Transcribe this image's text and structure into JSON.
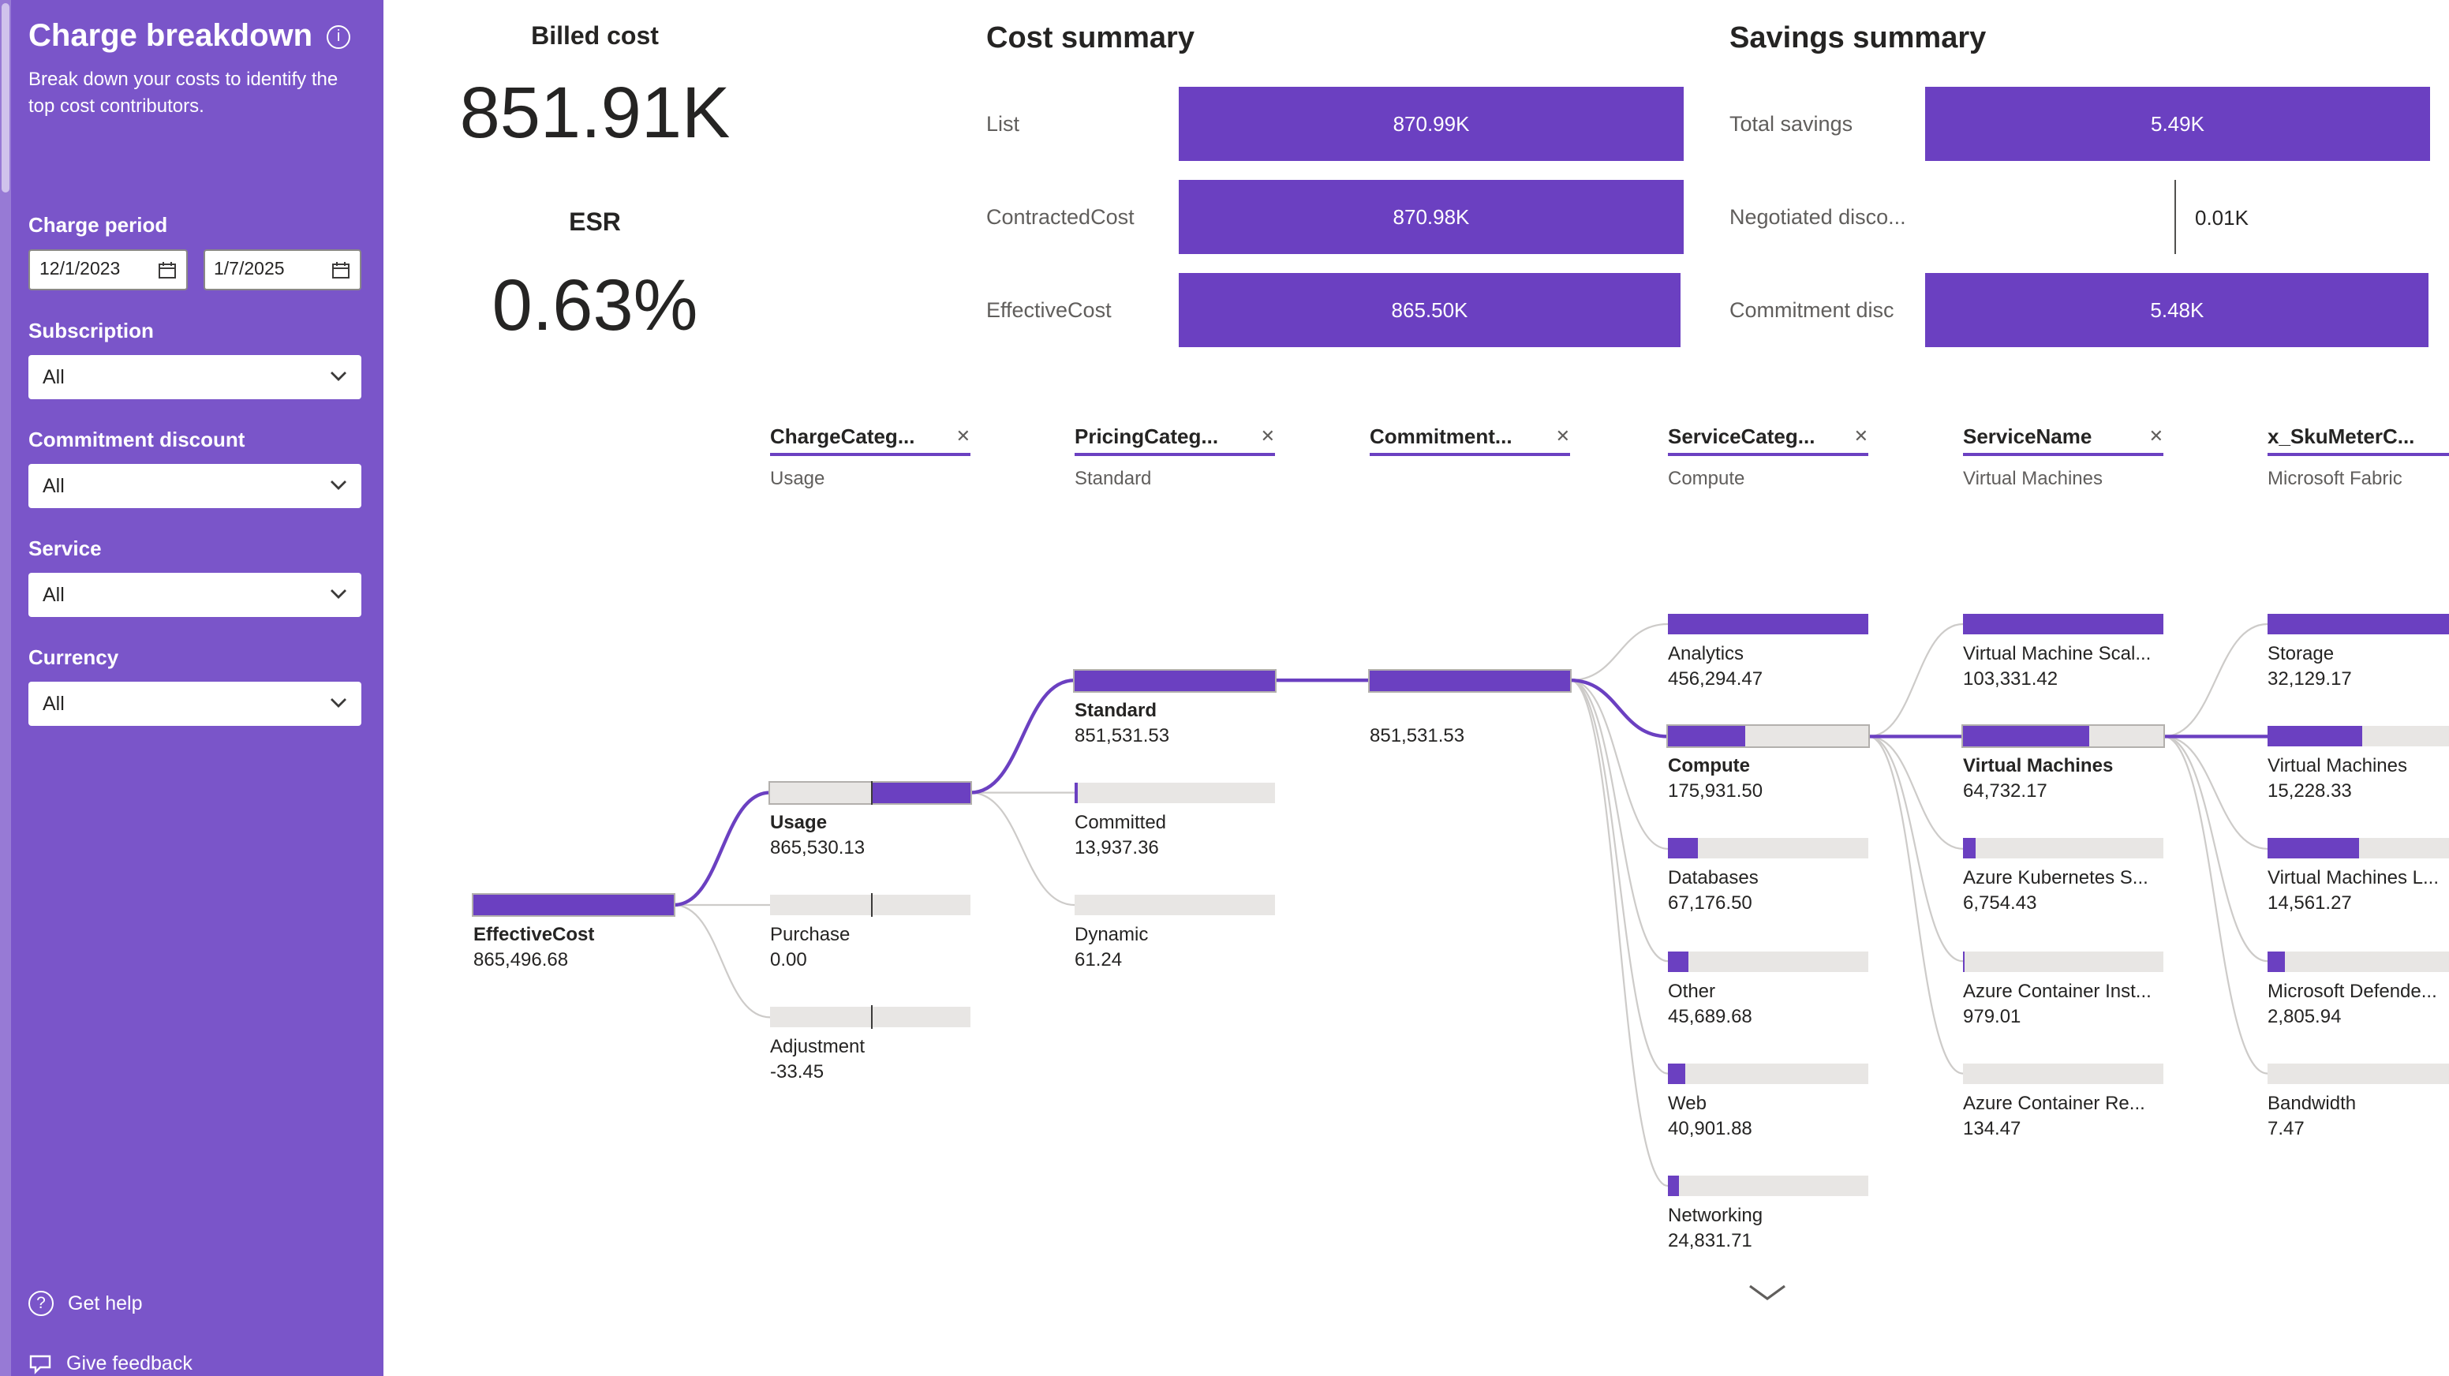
{
  "theme": {
    "purple": "#6B40C1",
    "sidebar_purple": "#7A55C9",
    "track_gray": "#E8E6E4",
    "text_dark": "#252423",
    "text_gray": "#605E5C"
  },
  "icons": {
    "info": "i",
    "close": "✕",
    "question": "?",
    "chevron_down": "⌄"
  },
  "sidebar": {
    "title": "Charge breakdown",
    "subtitle": "Break down your costs to identify the top cost contributors.",
    "charge_period_label": "Charge period",
    "date_start": "12/1/2023",
    "date_end": "1/7/2025",
    "filters": [
      {
        "label": "Subscription",
        "value": "All"
      },
      {
        "label": "Commitment discount",
        "value": "All"
      },
      {
        "label": "Service",
        "value": "All"
      },
      {
        "label": "Currency",
        "value": "All"
      }
    ],
    "get_help": "Get help",
    "give_feedback": "Give feedback"
  },
  "kpis": {
    "billed_label": "Billed cost",
    "billed_value": "851.91K",
    "esr_label": "ESR",
    "esr_value": "0.63%"
  },
  "cost_summary": {
    "title": "Cost summary",
    "rows": [
      {
        "label": "List",
        "display": "870.99K",
        "value": 870.99
      },
      {
        "label": "ContractedCost",
        "display": "870.98K",
        "value": 870.98
      },
      {
        "label": "EffectiveCost",
        "display": "865.50K",
        "value": 865.5
      }
    ]
  },
  "savings_summary": {
    "title": "Savings summary",
    "rows": [
      {
        "label": "Total savings",
        "display": "5.49K",
        "value": 5.49
      },
      {
        "label": "Negotiated disco...",
        "display": "0.01K",
        "value": 0.01,
        "outside": true
      },
      {
        "label": "Commitment disc",
        "display": "5.48K",
        "value": 5.48
      }
    ]
  },
  "tree": {
    "headers": [
      {
        "label": "ChargeCateg...",
        "selected_value": "Usage"
      },
      {
        "label": "PricingCateg...",
        "selected_value": "Standard"
      },
      {
        "label": "Commitment...",
        "selected_value": ""
      },
      {
        "label": "ServiceCateg...",
        "selected_value": "Compute"
      },
      {
        "label": "ServiceName",
        "selected_value": "Virtual Machines"
      },
      {
        "label": "x_SkuMeterC...",
        "selected_value": "Microsoft Fabric"
      }
    ],
    "columns": [
      {
        "field": "root",
        "nodes": [
          {
            "name": "EffectiveCost",
            "value": "865,496.68",
            "row": 2.5,
            "fill_from": 0,
            "fill_to": 1,
            "selected": true,
            "bold": true
          }
        ]
      },
      {
        "field": "ChargeCategory",
        "nodes": [
          {
            "name": "Usage",
            "value": "865,530.13",
            "row": 1.5,
            "fill_from": 0.5,
            "fill_to": 1,
            "tick": 0.5,
            "selected": true,
            "bold": true
          },
          {
            "name": "Purchase",
            "value": "0.00",
            "row": 2.5,
            "fill_from": 0.5,
            "fill_to": 0.5,
            "tick": 0.5
          },
          {
            "name": "Adjustment",
            "value": "-33.45",
            "row": 3.5,
            "fill_from": 0.5,
            "fill_to": 0.5,
            "tick": 0.5
          }
        ]
      },
      {
        "field": "PricingCategory",
        "nodes": [
          {
            "name": "Standard",
            "value": "851,531.53",
            "row": 0.5,
            "fill_from": 0,
            "fill_to": 1,
            "selected": true,
            "bold": true
          },
          {
            "name": "Committed",
            "value": "13,937.36",
            "row": 1.5,
            "fill_from": 0,
            "fill_to": 0.016
          },
          {
            "name": "Dynamic",
            "value": "61.24",
            "row": 2.5,
            "fill_from": 0,
            "fill_to": 0.0001
          }
        ]
      },
      {
        "field": "Commitment",
        "nodes": [
          {
            "name": "",
            "value": "851,531.53",
            "row": 0.5,
            "fill_from": 0,
            "fill_to": 1,
            "selected": true
          }
        ]
      },
      {
        "field": "ServiceCategory",
        "nodes": [
          {
            "name": "Analytics",
            "value": "456,294.47",
            "row": 0,
            "fill_from": 0,
            "fill_to": 1
          },
          {
            "name": "Compute",
            "value": "175,931.50",
            "row": 1,
            "fill_from": 0,
            "fill_to": 0.386,
            "selected": true,
            "bold": true
          },
          {
            "name": "Databases",
            "value": "67,176.50",
            "row": 2,
            "fill_from": 0,
            "fill_to": 0.147
          },
          {
            "name": "Other",
            "value": "45,689.68",
            "row": 3,
            "fill_from": 0,
            "fill_to": 0.1
          },
          {
            "name": "Web",
            "value": "40,901.88",
            "row": 4,
            "fill_from": 0,
            "fill_to": 0.09
          },
          {
            "name": "Networking",
            "value": "24,831.71",
            "row": 5,
            "fill_from": 0,
            "fill_to": 0.054
          }
        ]
      },
      {
        "field": "ServiceName",
        "nodes": [
          {
            "name": "Virtual Machine Scal...",
            "value": "103,331.42",
            "row": 0,
            "fill_from": 0,
            "fill_to": 1
          },
          {
            "name": "Virtual Machines",
            "value": "64,732.17",
            "row": 1,
            "fill_from": 0,
            "fill_to": 0.63,
            "selected": true,
            "bold": true
          },
          {
            "name": "Azure Kubernetes S...",
            "value": "6,754.43",
            "row": 2,
            "fill_from": 0,
            "fill_to": 0.065
          },
          {
            "name": "Azure Container Inst...",
            "value": "979.01",
            "row": 3,
            "fill_from": 0,
            "fill_to": 0.0095
          },
          {
            "name": "Azure Container Re...",
            "value": "134.47",
            "row": 4,
            "fill_from": 0,
            "fill_to": 0.0013
          }
        ]
      },
      {
        "field": "x_SkuMeterCategory",
        "nodes": [
          {
            "name": "Storage",
            "value": "32,129.17",
            "row": 0,
            "fill_from": 0,
            "fill_to": 1
          },
          {
            "name": "Virtual Machines",
            "value": "15,228.33",
            "row": 1,
            "fill_from": 0,
            "fill_to": 0.474,
            "hot": true
          },
          {
            "name": "Virtual Machines L...",
            "value": "14,561.27",
            "row": 2,
            "fill_from": 0,
            "fill_to": 0.453
          },
          {
            "name": "Microsoft Defende...",
            "value": "2,805.94",
            "row": 3,
            "fill_from": 0,
            "fill_to": 0.087
          },
          {
            "name": "Bandwidth",
            "value": "7.47",
            "row": 4,
            "fill_from": 0,
            "fill_to": 0.0002
          }
        ]
      }
    ]
  },
  "chart_data": [
    {
      "type": "table",
      "title": "KPIs",
      "columns": [
        "metric",
        "value"
      ],
      "rows": [
        [
          "Billed cost",
          "851.91K"
        ],
        [
          "ESR",
          "0.63%"
        ]
      ]
    },
    {
      "type": "bar",
      "title": "Cost summary",
      "orientation": "horizontal",
      "categories": [
        "List",
        "ContractedCost",
        "EffectiveCost"
      ],
      "values": [
        870.99,
        870.98,
        865.5
      ],
      "unit": "K",
      "xlim": [
        0,
        870.99
      ]
    },
    {
      "type": "bar",
      "title": "Savings summary",
      "orientation": "horizontal",
      "categories": [
        "Total savings",
        "Negotiated disco...",
        "Commitment disc"
      ],
      "values": [
        5.49,
        0.01,
        5.48
      ],
      "unit": "K",
      "xlim": [
        0,
        5.49
      ]
    },
    {
      "type": "table",
      "title": "Decomposition tree: EffectiveCost by ChargeCategory / PricingCategory / Commitment / ServiceCategory / ServiceName / x_SkuMeterCategory",
      "columns": [
        "level",
        "item",
        "value"
      ],
      "rows": [
        [
          "root",
          "EffectiveCost",
          865496.68
        ],
        [
          "ChargeCategory",
          "Usage",
          865530.13
        ],
        [
          "ChargeCategory",
          "Purchase",
          0.0
        ],
        [
          "ChargeCategory",
          "Adjustment",
          -33.45
        ],
        [
          "PricingCategory",
          "Standard",
          851531.53
        ],
        [
          "PricingCategory",
          "Committed",
          13937.36
        ],
        [
          "PricingCategory",
          "Dynamic",
          61.24
        ],
        [
          "Commitment",
          "",
          851531.53
        ],
        [
          "ServiceCategory",
          "Analytics",
          456294.47
        ],
        [
          "ServiceCategory",
          "Compute",
          175931.5
        ],
        [
          "ServiceCategory",
          "Databases",
          67176.5
        ],
        [
          "ServiceCategory",
          "Other",
          45689.68
        ],
        [
          "ServiceCategory",
          "Web",
          40901.88
        ],
        [
          "ServiceCategory",
          "Networking",
          24831.71
        ],
        [
          "ServiceName",
          "Virtual Machine Scal...",
          103331.42
        ],
        [
          "ServiceName",
          "Virtual Machines",
          64732.17
        ],
        [
          "ServiceName",
          "Azure Kubernetes S...",
          6754.43
        ],
        [
          "ServiceName",
          "Azure Container Inst...",
          979.01
        ],
        [
          "ServiceName",
          "Azure Container Re...",
          134.47
        ],
        [
          "x_SkuMeterCategory",
          "Storage",
          32129.17
        ],
        [
          "x_SkuMeterCategory",
          "Virtual Machines",
          15228.33
        ],
        [
          "x_SkuMeterCategory",
          "Virtual Machines L...",
          14561.27
        ],
        [
          "x_SkuMeterCategory",
          "Microsoft Defende...",
          2805.94
        ],
        [
          "x_SkuMeterCategory",
          "Bandwidth",
          7.47
        ]
      ]
    }
  ]
}
